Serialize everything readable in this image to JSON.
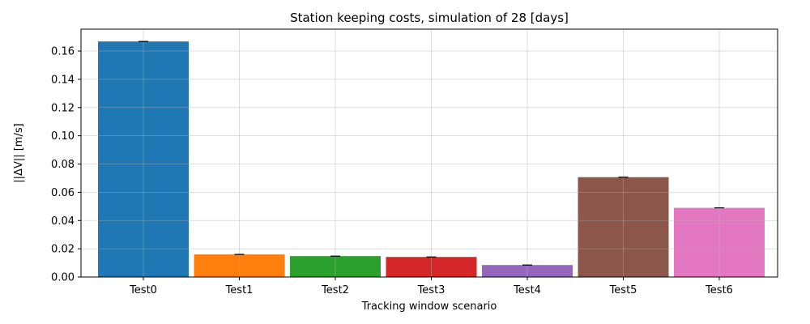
{
  "chart_data": {
    "type": "bar",
    "title": "Station keeping costs, simulation of 28 [days]",
    "xlabel": "Tracking window scenario",
    "ylabel": "||ΔV|| [m/s]",
    "categories": [
      "Test0",
      "Test1",
      "Test2",
      "Test3",
      "Test4",
      "Test5",
      "Test6"
    ],
    "values": [
      0.1668,
      0.016,
      0.0148,
      0.0142,
      0.0085,
      0.0707,
      0.049
    ],
    "colors": [
      "#1f77b4",
      "#ff7f0e",
      "#2ca02c",
      "#d62728",
      "#9467bd",
      "#8c564b",
      "#e377c2"
    ],
    "ylim": [
      0,
      0.1755
    ],
    "yticks": [
      0.0,
      0.02,
      0.04,
      0.06,
      0.08,
      0.1,
      0.12,
      0.14,
      0.16
    ],
    "ytick_labels": [
      "0.00",
      "0.02",
      "0.04",
      "0.06",
      "0.08",
      "0.10",
      "0.12",
      "0.14",
      "0.16"
    ],
    "grid": true,
    "error_bars": true
  }
}
